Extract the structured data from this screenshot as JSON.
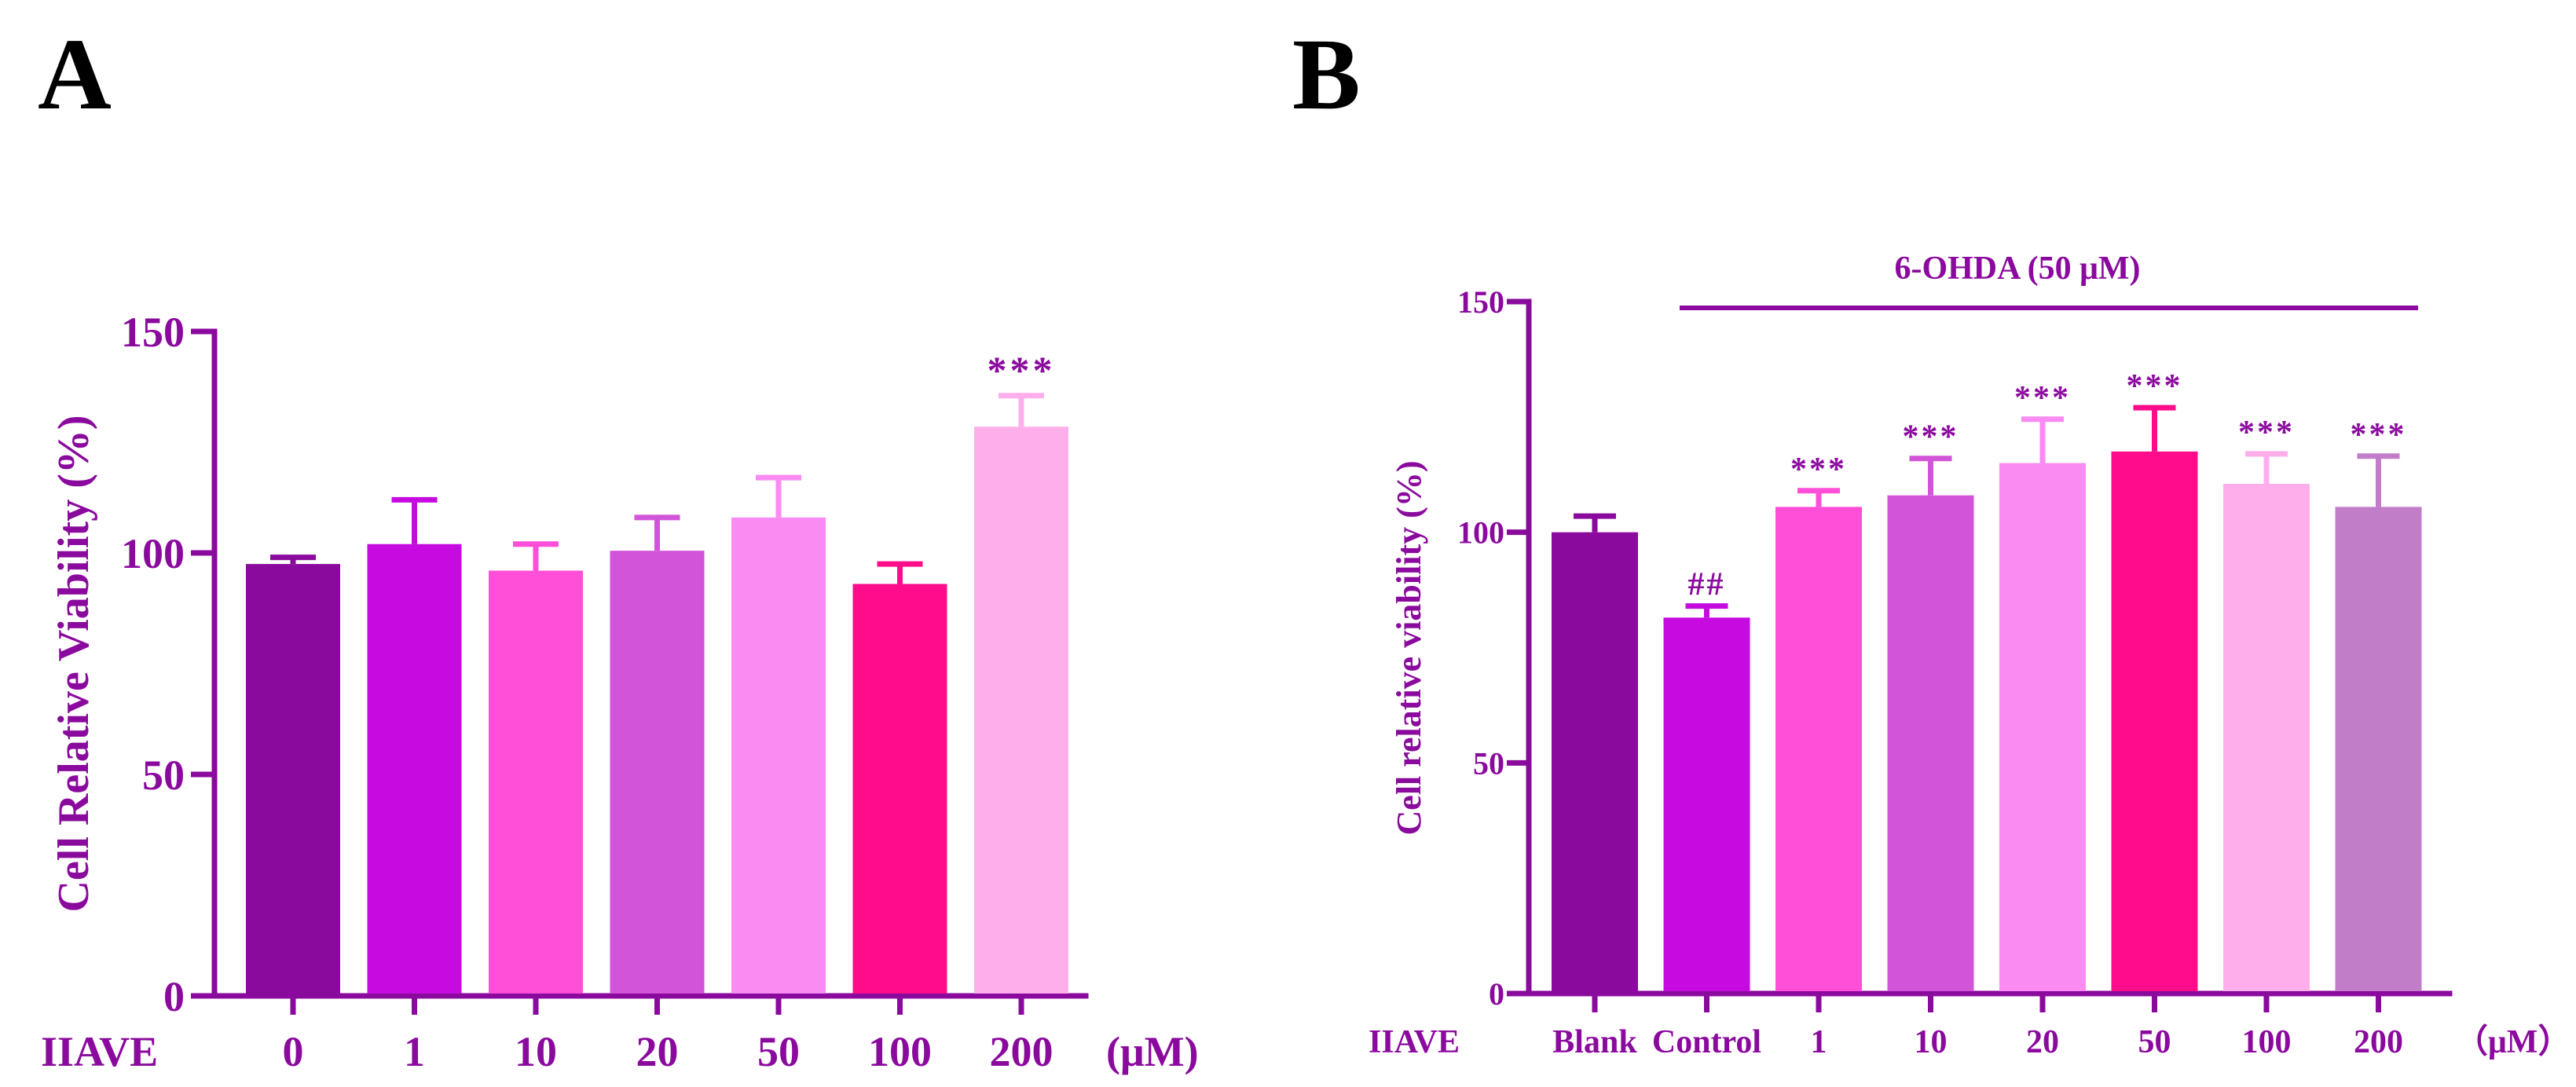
{
  "colors": {
    "axis": "#8B0A9E",
    "text": "#8B0A9E",
    "panel_letter": "#000000"
  },
  "chart_data": [
    {
      "panel": "A",
      "type": "bar",
      "ylabel": "Cell Relative Viability (%)",
      "xlabel_prefix": "IIAVE",
      "unit_label": "(μM)",
      "ylim": [
        0,
        150
      ],
      "yticks": [
        "0",
        "50",
        "100",
        "150"
      ],
      "categories": [
        "0",
        "1",
        "10",
        "20",
        "50",
        "100",
        "200"
      ],
      "values": [
        97.5,
        102,
        96,
        100.5,
        108,
        93,
        128.5
      ],
      "errors": [
        1.5,
        10,
        6,
        7.5,
        9,
        4.5,
        7
      ],
      "significance": [
        "",
        "",
        "",
        "",
        "",
        "",
        "***"
      ],
      "bar_colors": [
        "#8B0A9E",
        "#C60BE0",
        "#FF4FD8",
        "#D254D8",
        "#F98BF3",
        "#FF0C8A",
        "#FFAEEC"
      ]
    },
    {
      "panel": "B",
      "type": "bar",
      "ylabel": "Cell relative viability (%)",
      "xlabel_prefix": "IIAVE",
      "unit_label": "（μM）",
      "bracket_label": "6-OHDA (50 μM)",
      "ylim": [
        0,
        150
      ],
      "yticks": [
        "0",
        "50",
        "100",
        "150"
      ],
      "categories": [
        "Blank",
        "Control",
        "1",
        "10",
        "20",
        "50",
        "100",
        "200"
      ],
      "values": [
        100,
        81.5,
        105.5,
        108,
        115,
        117.5,
        110.5,
        105.5
      ],
      "errors": [
        3.5,
        2.5,
        3.5,
        8,
        9.5,
        9.5,
        6.5,
        11
      ],
      "significance": [
        "",
        "##",
        "***",
        "***",
        "***",
        "***",
        "***",
        "***"
      ],
      "bar_colors": [
        "#8B0A9E",
        "#C60BE0",
        "#FF4FD8",
        "#D254D8",
        "#F98BF3",
        "#FF0C8A",
        "#FFAEEC",
        "#C27DC8"
      ]
    }
  ]
}
